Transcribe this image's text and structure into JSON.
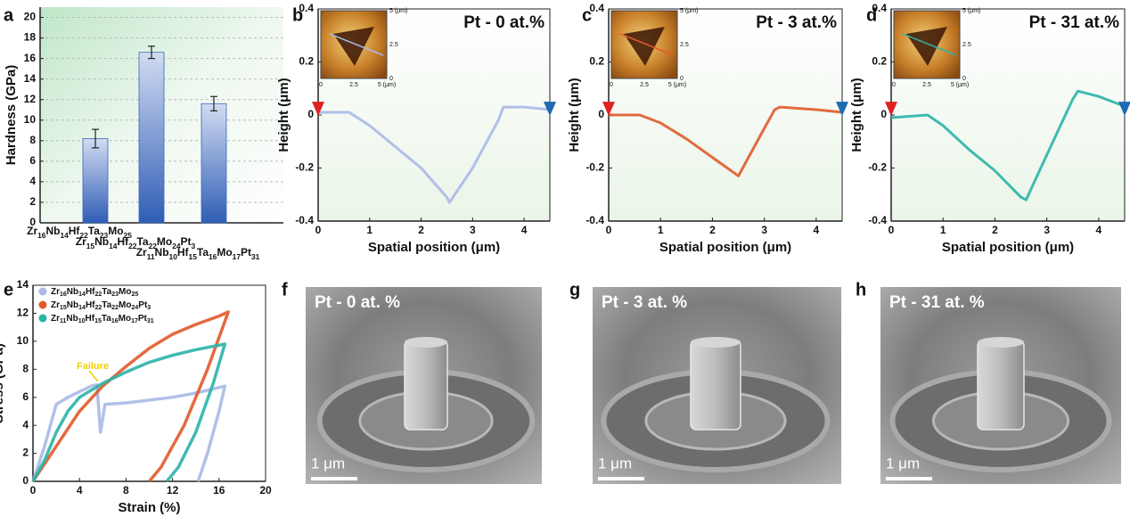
{
  "panel_labels": [
    "a",
    "b",
    "c",
    "d",
    "e",
    "f",
    "g",
    "h"
  ],
  "chart_data": [
    {
      "type": "bar",
      "ylabel": "Hardness (GPa)",
      "categories": [
        "Zr16Nb14Hf22Ta23Mo25",
        "Zr15Nb14Hf22Ta22Mo24Pt3",
        "Zr11Nb10Hf15Ta16Mo17Pt31"
      ],
      "values": [
        8.2,
        16.6,
        11.6
      ],
      "errors": [
        0.9,
        0.6,
        0.7
      ],
      "color": "#3a66bd",
      "ylim": [
        0,
        21
      ],
      "yticks": [
        0,
        2,
        4,
        6,
        8,
        10,
        12,
        14,
        16,
        18,
        20
      ]
    },
    {
      "type": "line",
      "title": "Pt - 0 at.%",
      "xlabel": "Spatial position (μm)",
      "ylabel": "Height (μm)",
      "x": [
        0,
        0.6,
        1,
        1.5,
        2,
        2.5,
        2.55,
        3,
        3.5,
        3.6,
        4,
        4.5
      ],
      "series": [
        {
          "color": "#a9b9e6",
          "values": [
            0.01,
            0.01,
            -0.04,
            -0.12,
            -0.2,
            -0.31,
            -0.33,
            -0.2,
            -0.02,
            0.03,
            0.03,
            0.02
          ]
        }
      ],
      "xlim": [
        0,
        4.5
      ],
      "xticks": [
        0,
        1,
        2,
        3,
        4
      ],
      "ylim": [
        -0.4,
        0.4
      ],
      "yticks": [
        -0.4,
        -0.2,
        0,
        0.2,
        0.4
      ],
      "inset": {
        "xticks": [
          "0",
          "2.5",
          "5 (μm)"
        ],
        "yticks": [
          "0",
          "2.5",
          "5 (μm)"
        ]
      }
    },
    {
      "type": "line",
      "title": "Pt - 3 at.%",
      "xlabel": "Spatial position (μm)",
      "ylabel": "Height (μm)",
      "x": [
        0,
        0.6,
        1,
        1.5,
        2,
        2.5,
        3,
        3.2,
        3.3,
        4,
        4.5
      ],
      "series": [
        {
          "color": "#e05a2a",
          "values": [
            0,
            0,
            -0.03,
            -0.09,
            -0.16,
            -0.23,
            -0.05,
            0.02,
            0.03,
            0.02,
            0.01
          ]
        }
      ],
      "xlim": [
        0,
        4.5
      ],
      "xticks": [
        0,
        1,
        2,
        3,
        4
      ],
      "ylim": [
        -0.4,
        0.4
      ],
      "yticks": [
        -0.4,
        -0.2,
        0,
        0.2,
        0.4
      ],
      "inset": {
        "xticks": [
          "0",
          "2.5",
          "5 (μm)"
        ],
        "yticks": [
          "0",
          "2.5",
          "5 (μm)"
        ]
      }
    },
    {
      "type": "line",
      "title": "Pt - 31 at.%",
      "xlabel": "Spatial position (μm)",
      "ylabel": "Height (μm)",
      "x": [
        0,
        0.7,
        1,
        1.5,
        2,
        2.5,
        2.6,
        3,
        3.5,
        3.6,
        4,
        4.4,
        4.5
      ],
      "series": [
        {
          "color": "#2bb3a8",
          "values": [
            -0.01,
            0,
            -0.04,
            -0.13,
            -0.21,
            -0.31,
            -0.32,
            -0.15,
            0.06,
            0.09,
            0.07,
            0.04,
            0.04
          ]
        }
      ],
      "xlim": [
        0,
        4.5
      ],
      "xticks": [
        0,
        1,
        2,
        3,
        4
      ],
      "ylim": [
        -0.4,
        0.4
      ],
      "yticks": [
        -0.4,
        -0.2,
        0,
        0.2,
        0.4
      ],
      "inset": {
        "xticks": [
          "0",
          "2.5",
          "5 (μm)"
        ],
        "yticks": [
          "0",
          "2.5",
          "5 (μm)"
        ]
      }
    },
    {
      "type": "line",
      "xlabel": "Strain (%)",
      "ylabel": "Stress (GPa)",
      "annotation": "Failure",
      "legend": "upper left",
      "xlim": [
        0,
        20
      ],
      "xticks": [
        0,
        4,
        8,
        12,
        16,
        20
      ],
      "ylim": [
        0,
        14
      ],
      "yticks": [
        0,
        2,
        4,
        6,
        8,
        10,
        12,
        14
      ],
      "series": [
        {
          "name": "Zr16Nb14Hf22Ta23Mo25",
          "color": "#a9b9e6",
          "x": [
            0,
            1,
            2,
            3,
            4,
            5,
            5.5,
            5.8,
            6.2,
            8,
            10,
            12,
            14,
            16.5,
            16,
            15,
            14.2
          ],
          "values": [
            0,
            2.5,
            5.5,
            6,
            6.4,
            6.8,
            6.9,
            3.5,
            5.5,
            5.6,
            5.8,
            6,
            6.3,
            6.8,
            5,
            2,
            0
          ]
        },
        {
          "name": "Zr15Nb14Hf22Ta22Mo24Pt3",
          "color": "#e05a2a",
          "x": [
            0,
            2,
            4,
            6,
            8,
            10,
            12,
            14,
            16,
            16.8,
            15,
            13,
            11,
            10
          ],
          "values": [
            0,
            2.5,
            5,
            6.8,
            8.2,
            9.5,
            10.5,
            11.2,
            11.8,
            12.1,
            8,
            4,
            1,
            0
          ]
        },
        {
          "name": "Zr11Nb10Hf15Ta16Mo17Pt31",
          "color": "#2bb3a8",
          "x": [
            0,
            1,
            2,
            3,
            4,
            6,
            8,
            10,
            12,
            14,
            16.5,
            15.5,
            14,
            12.5,
            11.5
          ],
          "values": [
            0,
            1.5,
            3.5,
            5,
            6,
            7,
            7.8,
            8.5,
            9,
            9.4,
            9.8,
            7,
            3.5,
            1,
            0
          ]
        }
      ]
    }
  ],
  "micrographs": [
    {
      "label": "Pt - 0 at. %",
      "scale_bar": "1 μm"
    },
    {
      "label": "Pt - 3 at. %",
      "scale_bar": "1 μm"
    },
    {
      "label": "Pt - 31 at. %",
      "scale_bar": "1 μm"
    }
  ]
}
